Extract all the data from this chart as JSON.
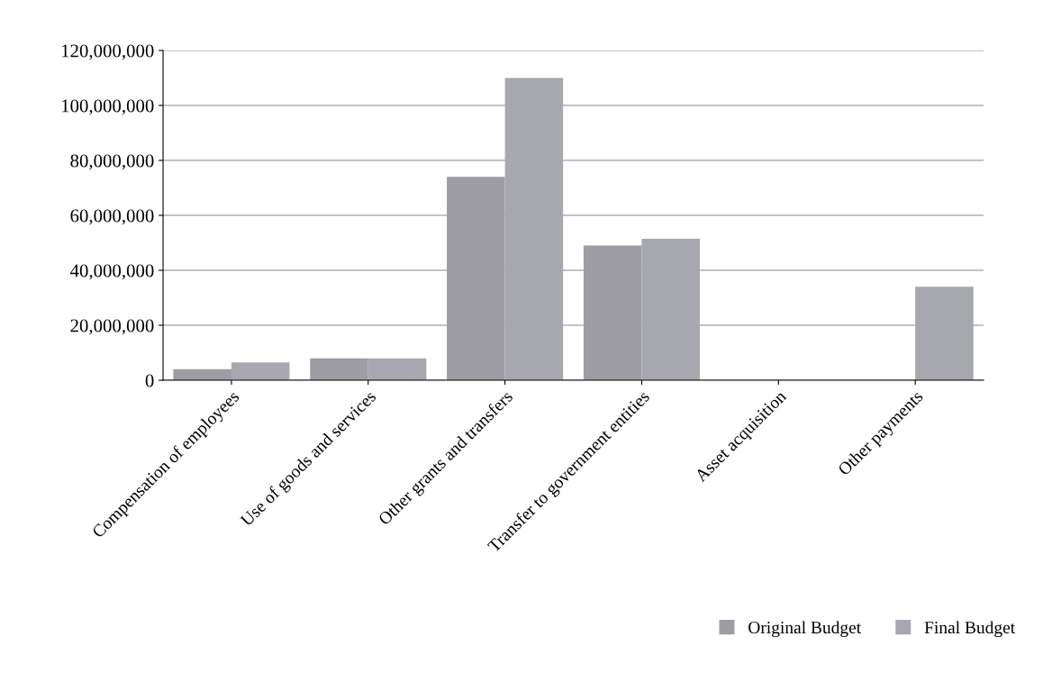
{
  "chart_data": {
    "type": "bar",
    "categories": [
      "Compensation of employees",
      "Use of goods and services",
      "Other grants and transfers",
      "Transfer to government entities",
      "Asset acquisition",
      "Other payments"
    ],
    "series": [
      {
        "name": "Original Budget",
        "color": "#9d9da3",
        "values": [
          4000000,
          8000000,
          74000000,
          49000000,
          null,
          0
        ]
      },
      {
        "name": "Final Budget",
        "color": "#a7a7b0",
        "values": [
          6500000,
          8000000,
          110000000,
          51500000,
          null,
          34000000
        ]
      }
    ],
    "ylim": [
      0,
      120000000
    ],
    "yticks": [
      {
        "value": 0,
        "label": "0"
      },
      {
        "value": 20000000,
        "label": "20,000,000"
      },
      {
        "value": 40000000,
        "label": "40,000,000"
      },
      {
        "value": 60000000,
        "label": "60,000,000"
      },
      {
        "value": 80000000,
        "label": "80,000,000"
      },
      {
        "value": 100000000,
        "label": "100,000,000"
      },
      {
        "value": 120000000,
        "label": "120,000,000"
      }
    ],
    "grid": "y",
    "legend": "bottom right"
  }
}
